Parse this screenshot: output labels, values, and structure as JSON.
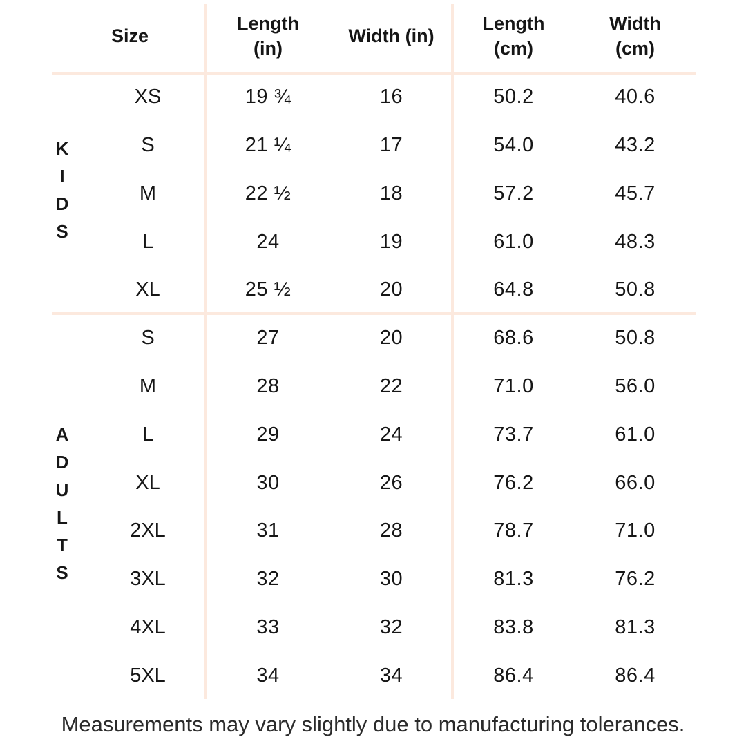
{
  "colors": {
    "background": "#ffffff",
    "line": "#fce9de",
    "text": "#161616",
    "footer_text": "#2b2b2b"
  },
  "table": {
    "headers": {
      "size": "Size",
      "length_in": "Length\n(in)",
      "width_in": "Width (in)",
      "length_cm": "Length\n(cm)",
      "width_cm": "Width\n(cm)"
    },
    "sections": [
      {
        "group": "KIDS",
        "rows": [
          {
            "size": "XS",
            "length_in": "19 ¾",
            "width_in": "16",
            "length_cm": "50.2",
            "width_cm": "40.6"
          },
          {
            "size": "S",
            "length_in": "21 ¼",
            "width_in": "17",
            "length_cm": "54.0",
            "width_cm": "43.2"
          },
          {
            "size": "M",
            "length_in": "22 ½",
            "width_in": "18",
            "length_cm": "57.2",
            "width_cm": "45.7"
          },
          {
            "size": "L",
            "length_in": "24",
            "width_in": "19",
            "length_cm": "61.0",
            "width_cm": "48.3"
          },
          {
            "size": "XL",
            "length_in": "25 ½",
            "width_in": "20",
            "length_cm": "64.8",
            "width_cm": "50.8"
          }
        ]
      },
      {
        "group": "ADULTS",
        "rows": [
          {
            "size": "S",
            "length_in": "27",
            "width_in": "20",
            "length_cm": "68.6",
            "width_cm": "50.8"
          },
          {
            "size": "M",
            "length_in": "28",
            "width_in": "22",
            "length_cm": "71.0",
            "width_cm": "56.0"
          },
          {
            "size": "L",
            "length_in": "29",
            "width_in": "24",
            "length_cm": "73.7",
            "width_cm": "61.0"
          },
          {
            "size": "XL",
            "length_in": "30",
            "width_in": "26",
            "length_cm": "76.2",
            "width_cm": "66.0"
          },
          {
            "size": "2XL",
            "length_in": "31",
            "width_in": "28",
            "length_cm": "78.7",
            "width_cm": "71.0"
          },
          {
            "size": "3XL",
            "length_in": "32",
            "width_in": "30",
            "length_cm": "81.3",
            "width_cm": "76.2"
          },
          {
            "size": "4XL",
            "length_in": "33",
            "width_in": "32",
            "length_cm": "83.8",
            "width_cm": "81.3"
          },
          {
            "size": "5XL",
            "length_in": "34",
            "width_in": "34",
            "length_cm": "86.4",
            "width_cm": "86.4"
          }
        ]
      }
    ]
  },
  "footer": {
    "note": "Measurements may vary slightly due to manufacturing tolerances."
  }
}
